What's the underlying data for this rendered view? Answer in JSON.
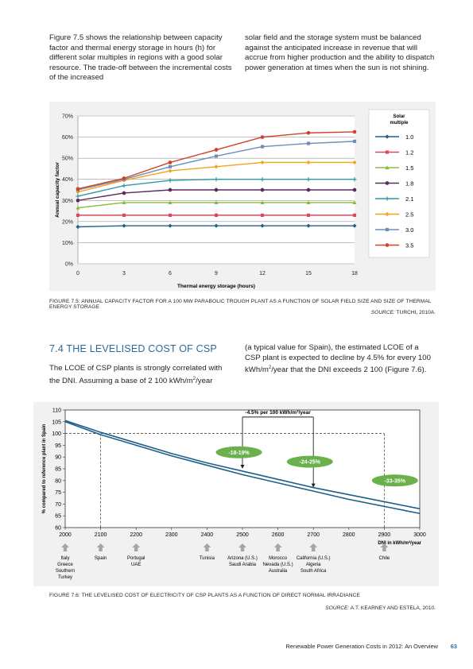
{
  "intro": {
    "left": "Figure 7.5 shows the relationship between capacity factor and thermal energy storage in hours (h) for different solar multiples in regions with a good solar resource. The trade-off between the incremental costs of the increased",
    "right": "solar field and the storage system must be balanced against the anticipated increase in revenue that will accrue from higher production and the ability to dispatch power generation at times when the sun is not shining."
  },
  "fig1": {
    "caption": "FIGURE 7.5: ANNUAL CAPACITY FACTOR FOR A 100 MW PARABOLIC TROUGH PLANT AS A FUNCTION OF SOLAR FIELD SIZE AND SIZE OF THERMAL ENERGY STORAGE",
    "source_label": "SOURCE:",
    "source_text": " TURCHI, 2010A."
  },
  "section": {
    "heading": "7.4 THE LEVELISED COST OF CSP",
    "left_main": "The LCOE of CSP plants is strongly correlated with the DNI. Assuming a base of 2 100 kWh/m",
    "left_sup": "2",
    "left_tail": "/year",
    "right_1": "(a typical value for Spain), the estimated LCOE of a CSP plant is expected to decline by 4.5% for every 100 kWh/m",
    "right_sup": "2",
    "right_2": "/year that the DNI exceeds 2 100 (Figure 7.6)."
  },
  "fig2": {
    "caption": "FIGURE 7.6: THE LEVELISED COST OF ELECTRICITY OF CSP PLANTS AS A FUNCTION OF DIRECT NORMAL IRRADIANCE",
    "source_label": "SOURCE:",
    "source_text": " A.T. KEARNEY AND ESTELA, 2010."
  },
  "footer": {
    "title": "Renewable Power Generation Costs in 2012: An Overview",
    "page": "63"
  },
  "chart_data": [
    {
      "type": "line",
      "xlabel": "Thermal energy storage (hours)",
      "ylabel": "Annual capacity factor",
      "x": [
        0,
        3,
        6,
        9,
        12,
        15,
        18
      ],
      "xlim": [
        0,
        18
      ],
      "ylim": [
        0,
        70
      ],
      "yticks": [
        "0%",
        "10%",
        "20%",
        "30%",
        "40%",
        "50%",
        "60%",
        "70%"
      ],
      "grid": true,
      "legend_title": "Solar multiple",
      "legend_position": "right",
      "series": [
        {
          "name": "1.0",
          "color": "#1f5f8b",
          "marker": "diamond",
          "values": [
            17.5,
            18,
            18,
            18,
            18,
            18,
            18
          ]
        },
        {
          "name": "1.2",
          "color": "#d9485f",
          "marker": "square",
          "values": [
            23,
            23,
            23,
            23,
            23,
            23,
            23
          ]
        },
        {
          "name": "1.5",
          "color": "#8dbb3c",
          "marker": "triangle",
          "values": [
            26.5,
            29,
            29,
            29,
            29,
            29,
            29
          ]
        },
        {
          "name": "1.8",
          "color": "#5b2a5e",
          "marker": "circle",
          "values": [
            30,
            33.5,
            35,
            35,
            35,
            35,
            35
          ]
        },
        {
          "name": "2.1",
          "color": "#2e9aa8",
          "marker": "cross",
          "values": [
            32,
            37,
            39.5,
            40,
            40,
            40,
            40
          ]
        },
        {
          "name": "2.5",
          "color": "#f5a31a",
          "marker": "diamond",
          "values": [
            34,
            39.5,
            44,
            46,
            48,
            48,
            48
          ]
        },
        {
          "name": "3.0",
          "color": "#6b8fb5",
          "marker": "square",
          "values": [
            35,
            40,
            46,
            51,
            55.5,
            57,
            58
          ]
        },
        {
          "name": "3.5",
          "color": "#d3402c",
          "marker": "circle",
          "values": [
            35.5,
            40.5,
            48,
            54,
            60,
            62,
            62.5
          ]
        }
      ]
    },
    {
      "type": "line",
      "xlabel": "DNI in kWh/m²/year",
      "ylabel": "% compared to reference plant in Spain",
      "x": [
        2000,
        2100,
        2200,
        2300,
        2400,
        2500,
        2600,
        2700,
        2800,
        2900,
        3000
      ],
      "xlim": [
        2000,
        3000
      ],
      "ylim": [
        60,
        110
      ],
      "yticks": [
        60,
        65,
        70,
        75,
        80,
        85,
        90,
        95,
        100,
        105,
        110
      ],
      "grid": false,
      "series": [
        {
          "name": "",
          "color": "#1f5f8b",
          "values": [
            105,
            99.5,
            95,
            90.5,
            86.5,
            82.5,
            79,
            75.5,
            72,
            69,
            66
          ]
        },
        {
          "name": "",
          "color": "#1f5f8b",
          "values": [
            105.5,
            100.5,
            96,
            91.5,
            87.5,
            84,
            80.5,
            77,
            74,
            71,
            68
          ]
        }
      ],
      "reference_line": {
        "x": 2100,
        "y": 100
      },
      "annotation_top": "-4.5% per 100 kWh/m²/year",
      "annotation_sup_pieces": {
        "pre": "-4.5% per 100 kWh/m",
        "sup": "2",
        "post": "/year"
      },
      "badges": [
        {
          "label": "-18-19%",
          "x": 2490,
          "y": 92
        },
        {
          "label": "-24-25%",
          "x": 2690,
          "y": 88
        },
        {
          "label": "-33-35%",
          "x": 2930,
          "y": 80
        }
      ],
      "badge_color": "#6ab04c",
      "arrows": [
        {
          "x": 2500,
          "y_from": 107,
          "y_to": 85
        },
        {
          "x": 2700,
          "y_from": 107,
          "y_to": 77
        }
      ],
      "regions": [
        {
          "x": 2000,
          "lines": [
            "Italy",
            "Greece",
            "Southern",
            "Turkey"
          ]
        },
        {
          "x": 2100,
          "lines": [
            "Spain"
          ]
        },
        {
          "x": 2200,
          "lines": [
            "Portugal",
            "UAE"
          ]
        },
        {
          "x": 2400,
          "lines": [
            "Tunisia"
          ]
        },
        {
          "x": 2500,
          "lines": [
            "Arizona (U.S.)",
            "Saudi Arabia"
          ]
        },
        {
          "x": 2600,
          "lines": [
            "Morocco",
            "Nevada (U.S.)",
            "Australia"
          ]
        },
        {
          "x": 2700,
          "lines": [
            "California (U.S.)",
            "Algeria",
            "South Africa"
          ]
        },
        {
          "x": 2900,
          "lines": [
            "Chile"
          ]
        }
      ]
    }
  ]
}
